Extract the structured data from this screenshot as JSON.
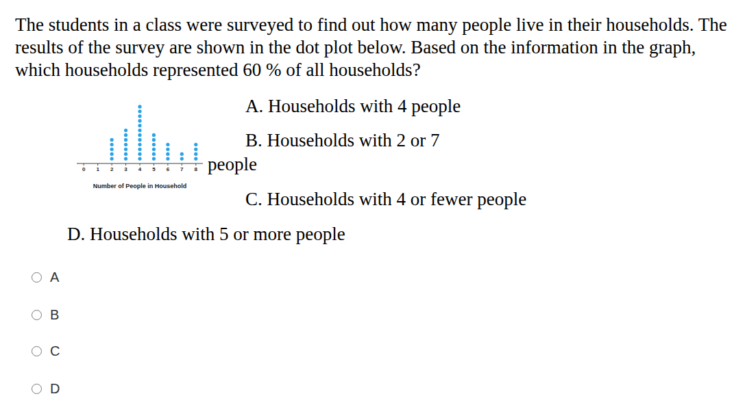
{
  "question": "The students in a class were surveyed to find out how many people live in their households. The results of the survey are shown in the dot plot below. Based on the information in the graph, which households represented 60 % of all households?",
  "chart_data": {
    "type": "dot",
    "x": [
      0,
      1,
      2,
      3,
      4,
      5,
      6,
      7,
      8
    ],
    "values": [
      0,
      0,
      5,
      7,
      12,
      6,
      4,
      2,
      4
    ],
    "x_label": "Number of People in Household",
    "xlim": [
      -0.5,
      8.5
    ],
    "xticks": [
      0,
      1,
      2,
      3,
      4,
      5,
      6,
      7,
      8
    ],
    "ylim": [
      0,
      13
    ],
    "color": "#29a3e8",
    "marker": "circle",
    "tick_labels": "x"
  },
  "choices": [
    {
      "label": "A.",
      "text": "Households with 4 people"
    },
    {
      "label": "B.",
      "text": "Households with 2 or 7 people"
    },
    {
      "label": "C.",
      "text": "Households with 4 or fewer people"
    },
    {
      "label": "D.",
      "text": "Households with 5 or more people"
    }
  ],
  "answer_options": [
    "A",
    "B",
    "C",
    "D"
  ]
}
